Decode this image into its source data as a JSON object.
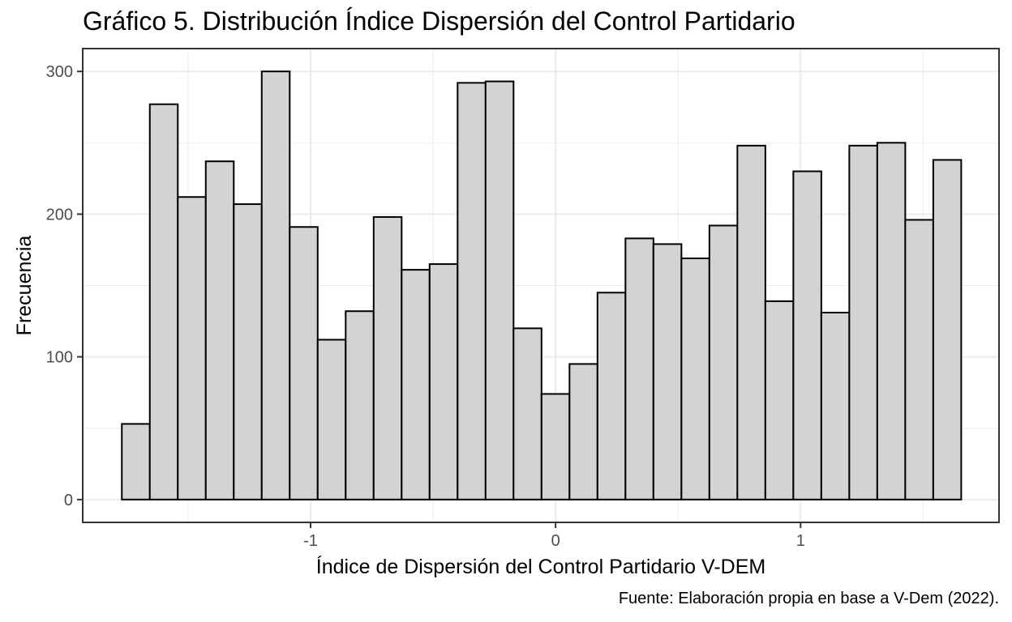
{
  "title": "Gráfico 5. Distribución Índice Dispersión del Control Partidario",
  "caption": "Fuente: Elaboración propia en base a V-Dem (2022).",
  "colors": {
    "bar_fill": "#d3d3d3",
    "bar_stroke": "#000000",
    "grid": "#ebebeb",
    "panel_border": "#333333"
  },
  "chart_data": {
    "type": "bar",
    "subtype": "histogram",
    "xlabel": "Índice de Dispersión del Control Partidario V-DEM",
    "ylabel": "Frecuencia",
    "xlim": [
      -1.93,
      1.81
    ],
    "ylim": [
      -16,
      316
    ],
    "x_ticks": [
      -1,
      0,
      1
    ],
    "x_tick_labels": [
      "-1",
      "0",
      "1"
    ],
    "y_ticks": [
      0,
      100,
      200,
      300
    ],
    "y_tick_labels": [
      "0",
      "100",
      "200",
      "300"
    ],
    "grid": true,
    "bin_width": 0.1142,
    "bin_centers": [
      -1.7132,
      -1.599,
      -1.4848,
      -1.3706,
      -1.2564,
      -1.1422,
      -1.028,
      -0.9138,
      -0.7996,
      -0.6854,
      -0.5712,
      -0.457,
      -0.3428,
      -0.2286,
      -0.1144,
      -0.0002,
      0.114,
      0.2282,
      0.3424,
      0.4566,
      0.5708,
      0.685,
      0.7992,
      0.9134,
      1.0276,
      1.1418,
      1.256,
      1.3702,
      1.4844,
      1.5986
    ],
    "values": [
      53,
      277,
      212,
      237,
      207,
      300,
      191,
      112,
      132,
      198,
      161,
      165,
      292,
      293,
      120,
      74,
      95,
      145,
      183,
      179,
      169,
      192,
      248,
      139,
      230,
      131,
      248,
      250,
      196,
      238
    ]
  }
}
